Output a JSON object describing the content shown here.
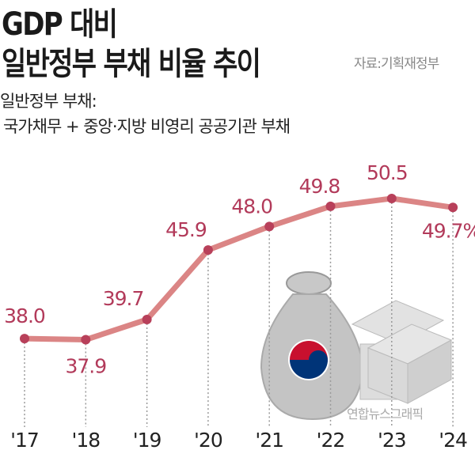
{
  "title_line1": "GDP 대비",
  "title_line2": "일반정부 부채 비율 추이",
  "source": "자료:기획재정부",
  "note_line1": "일반정부 부채:",
  "note_line2": "국가채무 + 중앙·지방 비영리 공공기관 부채",
  "credit": "연합뉴스그래픽",
  "colors": {
    "line": "#db8585",
    "point": "#b8405a",
    "label": "#b23a5a",
    "title": "#1a1a1a"
  },
  "chart_data": {
    "type": "line",
    "title": "GDP 대비 일반정부 부채 비율 추이",
    "categories": [
      "'17",
      "'18",
      "'19",
      "'20",
      "'21",
      "'22",
      "'23",
      "'24"
    ],
    "values": [
      38.0,
      37.9,
      39.7,
      45.9,
      48.0,
      49.8,
      50.5,
      49.7
    ],
    "data_labels": [
      "38.0",
      "37.9",
      "39.7",
      "45.9",
      "48.0",
      "49.8",
      "50.5",
      "49.7%"
    ],
    "unit": "%",
    "xlabel": "",
    "ylabel": "",
    "grid": false
  }
}
